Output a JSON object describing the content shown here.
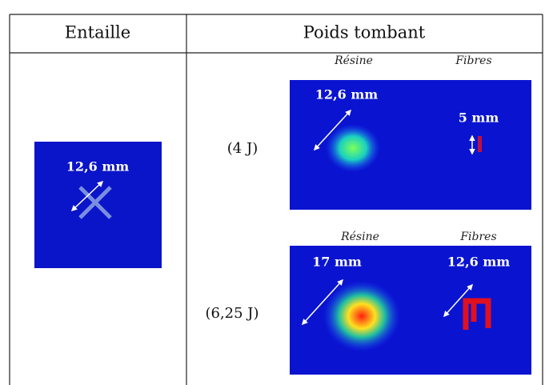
{
  "header": {
    "left": "Entaille",
    "right": "Poids tombant"
  },
  "entaille": {
    "measure": "12,6 mm"
  },
  "rows": [
    {
      "energy": "(4 J)",
      "resine_label": "Résine",
      "fibres_label": "Fibres",
      "resine_measure": "12,6 mm",
      "fibres_measure": "5 mm"
    },
    {
      "energy": "(6,25 J)",
      "resine_label": "Résine",
      "fibres_label": "Fibres",
      "resine_measure": "17 mm",
      "fibres_measure": "12,6 mm"
    }
  ]
}
